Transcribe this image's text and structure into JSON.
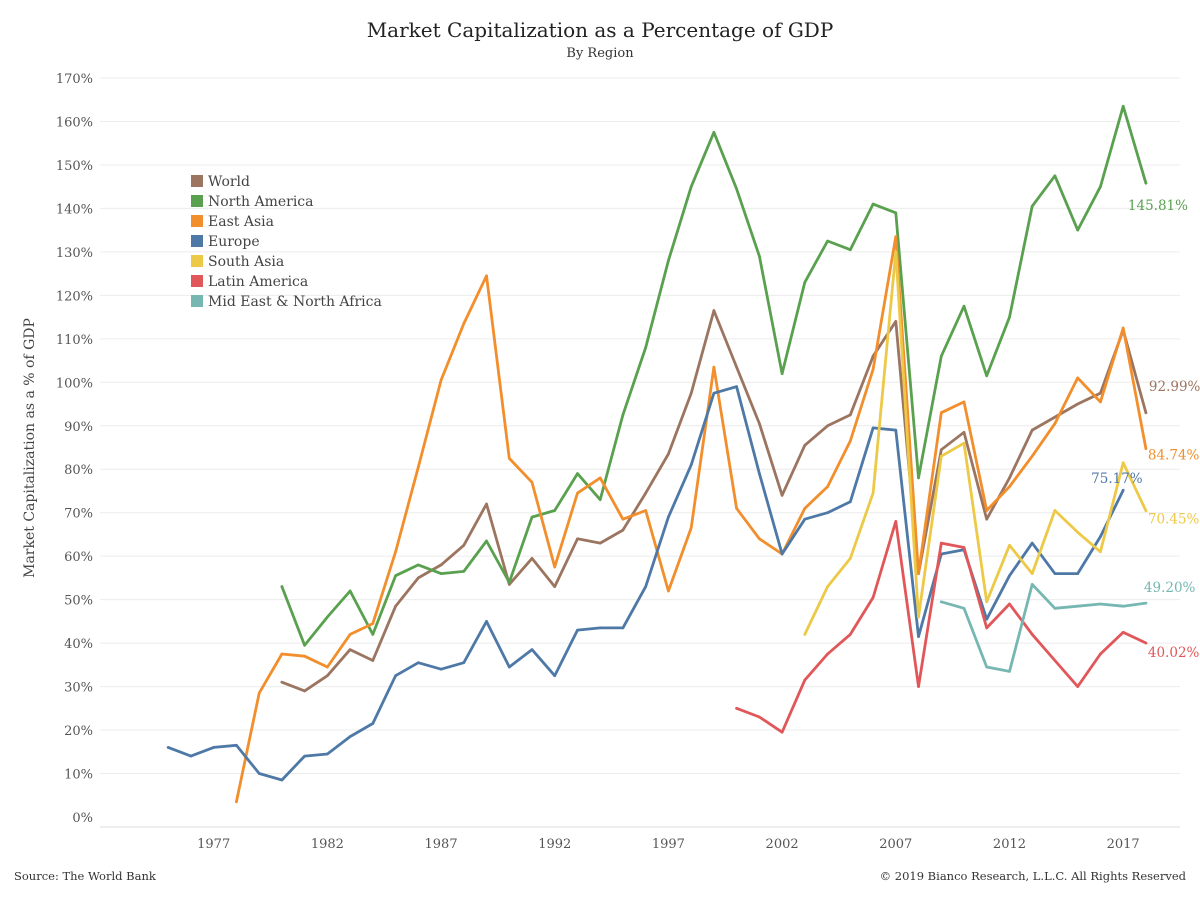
{
  "chart_data": {
    "type": "line",
    "title": "Market Capitalization as a Percentage of GDP",
    "subtitle": "By Region",
    "ylabel": "Market Capitalization as a % of GDP",
    "xlabel": "",
    "xlim": [
      1972,
      2019.5
    ],
    "ylim": [
      0,
      170
    ],
    "x_ticks": [
      1977,
      1982,
      1987,
      1992,
      1997,
      2002,
      2007,
      2012,
      2017
    ],
    "x_tick_labels": [
      "1977",
      "1982",
      "1987",
      "1992",
      "1997",
      "2002",
      "2007",
      "2012",
      "2017"
    ],
    "y_ticks": [
      0,
      10,
      20,
      30,
      40,
      50,
      60,
      70,
      80,
      90,
      100,
      110,
      120,
      130,
      140,
      150,
      160,
      170
    ],
    "y_tick_labels": [
      "0%",
      "10%",
      "20%",
      "30%",
      "40%",
      "50%",
      "60%",
      "70%",
      "80%",
      "90%",
      "100%",
      "110%",
      "120%",
      "130%",
      "140%",
      "150%",
      "160%",
      "170%"
    ],
    "grid": "horizontal",
    "legend": "top-left",
    "series": [
      {
        "name": "World",
        "color": "#9c7561",
        "x": [
          1980,
          1981,
          1982,
          1983,
          1984,
          1985,
          1986,
          1987,
          1988,
          1989,
          1990,
          1991,
          1992,
          1993,
          1994,
          1995,
          1996,
          1997,
          1998,
          1999,
          2000,
          2001,
          2002,
          2003,
          2004,
          2005,
          2006,
          2007,
          2008,
          2009,
          2010,
          2011,
          2012,
          2013,
          2014,
          2015,
          2016,
          2017,
          2018
        ],
        "y": [
          31,
          29,
          32.5,
          38.5,
          36,
          48.5,
          55,
          58,
          62.5,
          72,
          53.5,
          59.5,
          53,
          64,
          63,
          66,
          74.5,
          83.5,
          97.5,
          116.5,
          103.5,
          90.5,
          74,
          85.5,
          90,
          92.5,
          106,
          114,
          56,
          84.5,
          88.5,
          68.5,
          78,
          89,
          92,
          95,
          97.5,
          112,
          92.99
        ],
        "end_label": "92.99%"
      },
      {
        "name": "North America",
        "color": "#59a14f",
        "x": [
          1980,
          1981,
          1982,
          1983,
          1984,
          1985,
          1986,
          1987,
          1988,
          1989,
          1990,
          1991,
          1992,
          1993,
          1994,
          1995,
          1996,
          1997,
          1998,
          1999,
          2000,
          2001,
          2002,
          2003,
          2004,
          2005,
          2006,
          2007,
          2008,
          2009,
          2010,
          2011,
          2012,
          2013,
          2014,
          2015,
          2016,
          2017,
          2018
        ],
        "y": [
          53,
          39.5,
          46,
          52,
          42,
          55.5,
          58,
          56,
          56.5,
          63.5,
          54,
          69,
          70.5,
          79,
          73,
          92.5,
          108,
          128,
          145,
          157.5,
          144.5,
          129,
          102,
          123,
          132.5,
          130.5,
          141,
          139,
          78,
          106,
          117.5,
          101.5,
          115,
          140.5,
          147.5,
          135,
          145,
          163.5,
          145.81
        ],
        "end_label": "145.81%"
      },
      {
        "name": "East Asia",
        "color": "#f28e2b",
        "x": [
          1978,
          1979,
          1980,
          1981,
          1982,
          1983,
          1984,
          1985,
          1986,
          1987,
          1988,
          1989,
          1990,
          1991,
          1992,
          1993,
          1994,
          1995,
          1996,
          1997,
          1998,
          1999,
          2000,
          2001,
          2002,
          2003,
          2004,
          2005,
          2006,
          2007,
          2008,
          2009,
          2010,
          2011,
          2012,
          2013,
          2014,
          2015,
          2016,
          2017,
          2018
        ],
        "y": [
          3.5,
          28.5,
          37.5,
          37,
          34.5,
          42,
          44.5,
          61,
          80.5,
          100.5,
          113.5,
          124.5,
          82.5,
          77,
          57.5,
          74.5,
          78,
          68.5,
          70.5,
          52,
          66.5,
          103.5,
          71,
          64,
          60.5,
          71,
          76,
          86.5,
          103,
          133.5,
          56,
          93,
          95.5,
          70.5,
          76,
          83,
          90.5,
          101,
          95.5,
          112.5,
          84.74
        ],
        "end_label": "84.74%"
      },
      {
        "name": "Europe",
        "color": "#4e79a7",
        "x": [
          1975,
          1976,
          1977,
          1978,
          1979,
          1980,
          1981,
          1982,
          1983,
          1984,
          1985,
          1986,
          1987,
          1988,
          1989,
          1990,
          1991,
          1992,
          1993,
          1994,
          1995,
          1996,
          1997,
          1998,
          1999,
          2000,
          2001,
          2002,
          2003,
          2004,
          2005,
          2006,
          2007,
          2008,
          2009,
          2010,
          2011,
          2012,
          2013,
          2014,
          2015,
          2016,
          2017
        ],
        "y": [
          16,
          14,
          16,
          16.5,
          10,
          8.5,
          14,
          14.5,
          18.5,
          21.5,
          32.5,
          35.5,
          34,
          35.5,
          45,
          34.5,
          38.5,
          32.5,
          43,
          43.5,
          43.5,
          53,
          69,
          81,
          97.5,
          99,
          79,
          60.5,
          68.5,
          70,
          72.5,
          89.5,
          89,
          41.5,
          60.5,
          61.5,
          45.5,
          55.5,
          63,
          56,
          56,
          64.5,
          75.17
        ],
        "end_label": "75.17%"
      },
      {
        "name": "South Asia",
        "color": "#edc948",
        "x": [
          2003,
          2004,
          2005,
          2006,
          2007,
          2008,
          2009,
          2010,
          2011,
          2012,
          2013,
          2014,
          2015,
          2016,
          2017,
          2018
        ],
        "y": [
          42,
          53,
          59.5,
          74.5,
          130,
          46,
          83,
          86,
          49.5,
          62.5,
          56,
          70.5,
          65.5,
          61,
          81.5,
          70.45
        ],
        "end_label": "70.45%"
      },
      {
        "name": "Latin America",
        "color": "#e15759",
        "x": [
          2000,
          2001,
          2002,
          2003,
          2004,
          2005,
          2006,
          2007,
          2008,
          2009,
          2010,
          2011,
          2012,
          2013,
          2014,
          2015,
          2016,
          2017,
          2018
        ],
        "y": [
          25,
          23,
          19.5,
          31.5,
          37.5,
          42,
          50.5,
          68,
          30,
          63,
          62,
          43.5,
          49,
          42,
          36,
          30,
          37.5,
          42.5,
          40.02
        ],
        "end_label": "40.02%"
      },
      {
        "name": "Mid East & North Africa",
        "color": "#76b7b2",
        "x": [
          2009,
          2010,
          2011,
          2012,
          2013,
          2014,
          2015,
          2016,
          2017,
          2018
        ],
        "y": [
          49.5,
          48,
          34.5,
          33.5,
          53.5,
          48,
          48.5,
          49,
          48.5,
          49.2
        ],
        "end_label": "49.20%"
      }
    ]
  },
  "footer": {
    "source": "Source: The World Bank",
    "copyright": "© 2019 Bianco Research, L.L.C. All Rights Reserved"
  }
}
